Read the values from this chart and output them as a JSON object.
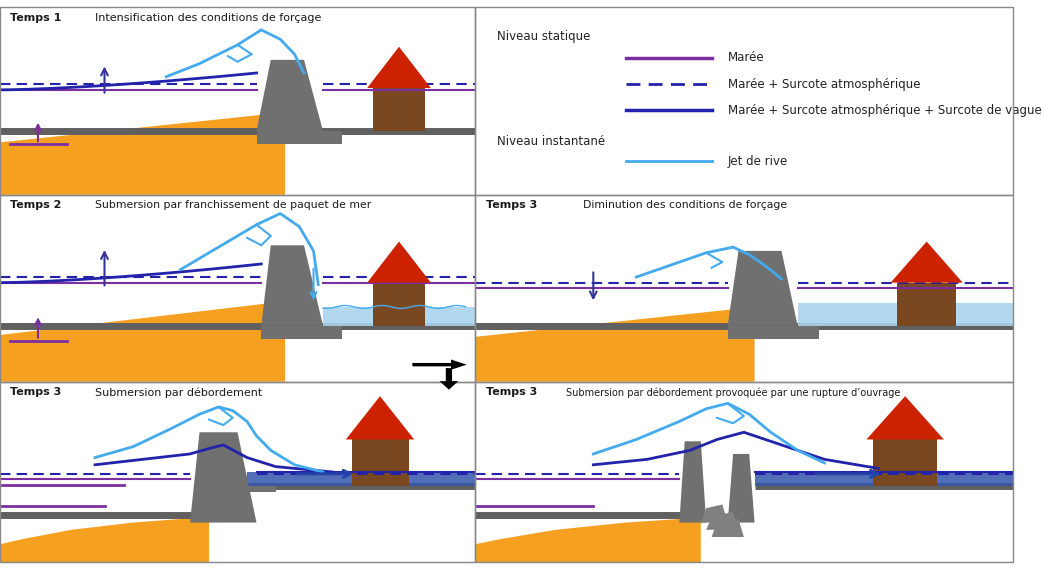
{
  "bg_color": "#ffffff",
  "title_color": "#1a1a1a",
  "maree_color": "#7b2fa0",
  "maree_surcote_color": "#2222aa",
  "jet_rive_color": "#44aaee",
  "water_fill_color": "#8bbcdd",
  "water_dark_color": "#3355aa",
  "beach_color": "#f5a020",
  "wall_color": "#707070",
  "house_wall_color": "#7a4820",
  "house_roof_color": "#cc2200",
  "ground_color": "#666666",
  "titles": {
    "panel1": "Intensification des conditions de forçage",
    "panel2": "Submersion par franchissement de paquet de mer",
    "panel3": "Submersion par débordement",
    "panel4": "Diminution des conditions de forçage",
    "panel5": "Submersion par débordement provoquée par une rupture d’ouvrage"
  },
  "temps_labels": {
    "panel1": "Temps 1",
    "panel2": "Temps 2",
    "panel3": "Temps 3",
    "panel4": "Temps 3",
    "panel5": "Temps 3"
  },
  "legend": {
    "niveau_statique": "Niveau statique",
    "niveau_instantane": "Niveau instantané",
    "maree": "Marée",
    "maree_surcote": "Marée + Surcote atmosphérique",
    "maree_surcote_vague": "Marée + Surcote atmosphérique + Surcote de vague",
    "jet_de_rive": "Jet de rive"
  }
}
